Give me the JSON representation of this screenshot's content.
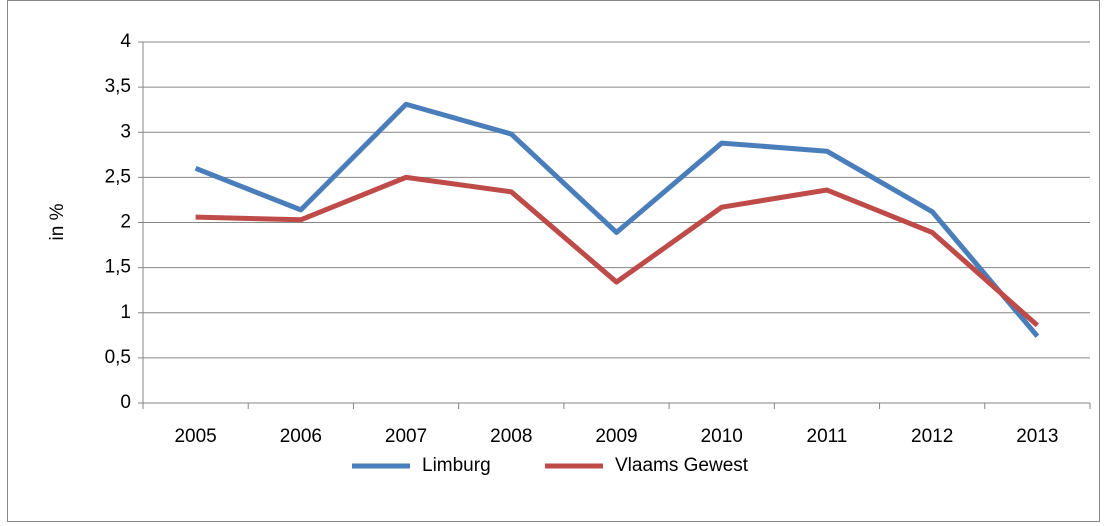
{
  "chart_data": {
    "type": "line",
    "y_label": "in %",
    "categories": [
      "2005",
      "2006",
      "2007",
      "2008",
      "2009",
      "2010",
      "2011",
      "2012",
      "2013"
    ],
    "series": [
      {
        "name": "Limburg",
        "color": "#4a7ebb",
        "values": [
          2.6,
          2.14,
          3.31,
          2.98,
          1.89,
          2.88,
          2.79,
          2.12,
          0.74
        ]
      },
      {
        "name": "Vlaams Gewest",
        "color": "#be4b48",
        "values": [
          2.06,
          2.03,
          2.5,
          2.34,
          1.34,
          2.17,
          2.36,
          1.89,
          0.86
        ]
      }
    ],
    "ylim": [
      0,
      4
    ],
    "yticks": [
      0,
      {
        "value": 0.5,
        "label": "0,5"
      },
      1,
      {
        "value": 1.5,
        "label": "1,5"
      },
      2,
      {
        "value": 2.5,
        "label": "2,5"
      },
      3,
      {
        "value": 3.5,
        "label": "3,5"
      },
      4
    ],
    "grid": true,
    "legend": "bottom"
  }
}
